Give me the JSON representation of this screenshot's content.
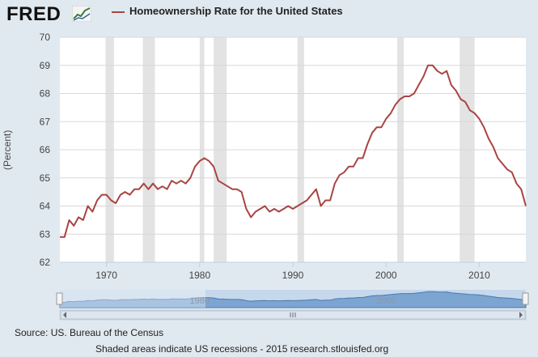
{
  "header": {
    "logo_text": "FRED",
    "logo_icon": "chart-line-icon",
    "series_title": "Homeownership Rate for the United States"
  },
  "colors": {
    "line": "#a94442",
    "recession": "#e3e3e3",
    "plot_bg": "#ffffff",
    "page_bg": "#e1e9f0",
    "navigator_fill": "#6f9ccc",
    "navigator_mask": "#c6d8ec"
  },
  "chart_data": {
    "type": "line",
    "title": "",
    "xlabel": "",
    "ylabel": "(Percent)",
    "xlim": [
      1965,
      2015
    ],
    "ylim": [
      62,
      70
    ],
    "y_ticks": [
      62,
      63,
      64,
      65,
      66,
      67,
      68,
      69,
      70
    ],
    "x_ticks": [
      1970,
      1980,
      1990,
      2000,
      2010
    ],
    "grid": "horizontal",
    "recessions": [
      [
        1969.9,
        1970.8
      ],
      [
        1973.9,
        1975.2
      ],
      [
        1980.0,
        1980.5
      ],
      [
        1981.5,
        1982.9
      ],
      [
        1990.5,
        1991.2
      ],
      [
        2001.2,
        2001.9
      ],
      [
        2007.9,
        2009.5
      ]
    ],
    "series": [
      {
        "name": "Homeownership Rate for the United States",
        "x": [
          1965.0,
          1965.5,
          1966.0,
          1966.5,
          1967.0,
          1967.5,
          1968.0,
          1968.5,
          1969.0,
          1969.5,
          1970.0,
          1970.5,
          1971.0,
          1971.5,
          1972.0,
          1972.5,
          1973.0,
          1973.5,
          1974.0,
          1974.5,
          1975.0,
          1975.5,
          1976.0,
          1976.5,
          1977.0,
          1977.5,
          1978.0,
          1978.5,
          1979.0,
          1979.5,
          1980.0,
          1980.5,
          1981.0,
          1981.5,
          1982.0,
          1982.5,
          1983.0,
          1983.5,
          1984.0,
          1984.5,
          1985.0,
          1985.5,
          1986.0,
          1986.5,
          1987.0,
          1987.5,
          1988.0,
          1988.5,
          1989.0,
          1989.5,
          1990.0,
          1990.5,
          1991.0,
          1991.5,
          1992.0,
          1992.5,
          1993.0,
          1993.5,
          1994.0,
          1994.5,
          1995.0,
          1995.5,
          1996.0,
          1996.5,
          1997.0,
          1997.5,
          1998.0,
          1998.5,
          1999.0,
          1999.5,
          2000.0,
          2000.5,
          2001.0,
          2001.5,
          2002.0,
          2002.5,
          2003.0,
          2003.5,
          2004.0,
          2004.5,
          2005.0,
          2005.5,
          2006.0,
          2006.5,
          2007.0,
          2007.5,
          2008.0,
          2008.5,
          2009.0,
          2009.5,
          2010.0,
          2010.5,
          2011.0,
          2011.5,
          2012.0,
          2012.5,
          2013.0,
          2013.5,
          2014.0,
          2014.5,
          2015.0
        ],
        "y": [
          62.9,
          62.9,
          63.5,
          63.3,
          63.6,
          63.5,
          64.0,
          63.8,
          64.2,
          64.4,
          64.4,
          64.2,
          64.1,
          64.4,
          64.5,
          64.4,
          64.6,
          64.6,
          64.8,
          64.6,
          64.8,
          64.6,
          64.7,
          64.6,
          64.9,
          64.8,
          64.9,
          64.8,
          65.0,
          65.4,
          65.6,
          65.7,
          65.6,
          65.4,
          64.9,
          64.8,
          64.7,
          64.6,
          64.6,
          64.5,
          63.9,
          63.6,
          63.8,
          63.9,
          64.0,
          63.8,
          63.9,
          63.8,
          63.9,
          64.0,
          63.9,
          64.0,
          64.1,
          64.2,
          64.4,
          64.6,
          64.0,
          64.2,
          64.2,
          64.8,
          65.1,
          65.2,
          65.4,
          65.4,
          65.7,
          65.7,
          66.2,
          66.6,
          66.8,
          66.8,
          67.1,
          67.3,
          67.6,
          67.8,
          67.9,
          67.9,
          68.0,
          68.3,
          68.6,
          69.0,
          69.0,
          68.8,
          68.7,
          68.8,
          68.3,
          68.1,
          67.8,
          67.7,
          67.4,
          67.3,
          67.1,
          66.8,
          66.4,
          66.1,
          65.7,
          65.5,
          65.3,
          65.2,
          64.8,
          64.6,
          64.0
        ]
      }
    ]
  },
  "navigator": {
    "tick_labels": [
      "1980",
      "2000"
    ]
  },
  "footer": {
    "source": "Source: US. Bureau of the Census",
    "note": "Shaded areas indicate US recessions - 2015 research.stlouisfed.org"
  }
}
